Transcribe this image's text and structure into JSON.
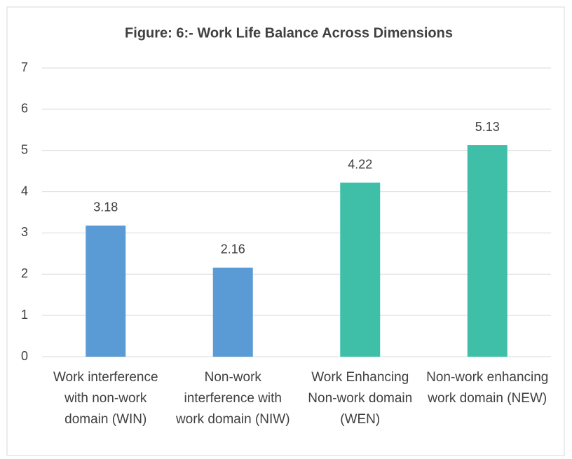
{
  "chart_data": {
    "type": "bar",
    "title": "Figure: 6:- Work Life Balance Across Dimensions",
    "categories": [
      "Work interference with non-work domain (WIN)",
      "Non-work interference with work domain (NIW)",
      "Work Enhancing Non-work domain (WEN)",
      "Non-work enhancing work domain (NEW)"
    ],
    "values": [
      3.18,
      2.16,
      4.22,
      5.13
    ],
    "colors": [
      "#5b9bd5",
      "#5b9bd5",
      "#3fbfa8",
      "#3fbfa8"
    ],
    "ylim": [
      0,
      7
    ],
    "yticks": [
      0,
      1,
      2,
      3,
      4,
      5,
      6,
      7
    ],
    "grid": true
  }
}
